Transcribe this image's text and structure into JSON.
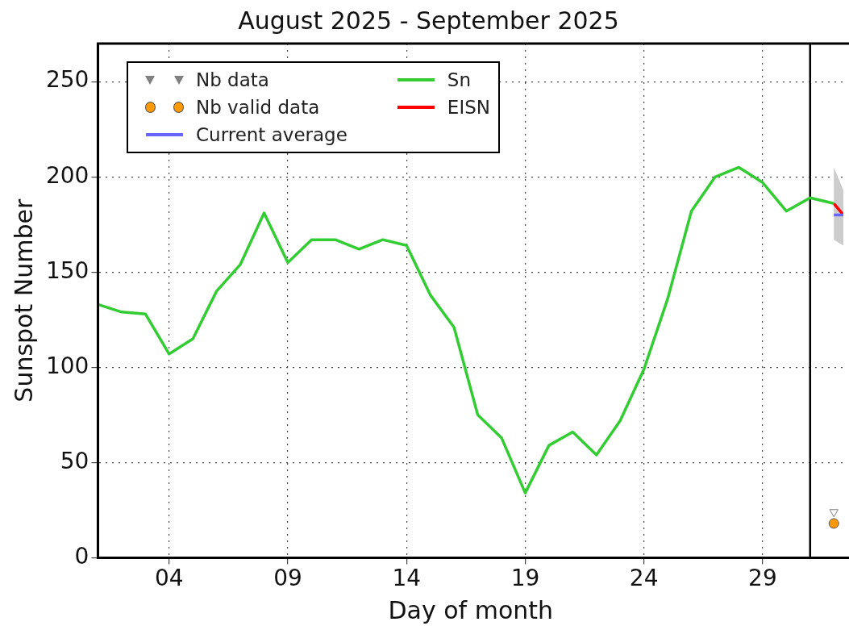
{
  "chart_data": {
    "type": "line",
    "title": "August 2025 - September 2025",
    "xlabel": "Day of month",
    "ylabel": "Sunspot Number",
    "xlim": [
      1,
      32.4
    ],
    "ylim": [
      0,
      270
    ],
    "xticks": [
      {
        "value": 4,
        "label": "04"
      },
      {
        "value": 9,
        "label": "09"
      },
      {
        "value": 14,
        "label": "14"
      },
      {
        "value": 19,
        "label": "19"
      },
      {
        "value": 24,
        "label": "24"
      },
      {
        "value": 29,
        "label": "29"
      }
    ],
    "yticks": [
      0,
      50,
      100,
      150,
      200,
      250
    ],
    "grid": true,
    "legend": "top left",
    "line_style": "solid",
    "ref_lines": [
      {
        "axis": "x",
        "value": 31,
        "color": "#000000"
      }
    ],
    "series": [
      {
        "name": "Nb data",
        "type": "scatter",
        "marker": "triangle",
        "color": "#808080",
        "x": [
          32
        ],
        "values": [
          24
        ]
      },
      {
        "name": "Nb valid data",
        "type": "scatter",
        "marker": "circle",
        "color": "#ff9900",
        "x": [
          32
        ],
        "values": [
          18
        ]
      },
      {
        "name": "Current average",
        "marker": "none",
        "color": "#6666ff",
        "x": [
          32,
          32.4
        ],
        "values": [
          180,
          180
        ]
      },
      {
        "name": "Sn",
        "marker": "none",
        "color": "#33cc33",
        "x": [
          1,
          2,
          3,
          4,
          5,
          6,
          7,
          8,
          9,
          10,
          11,
          12,
          13,
          14,
          15,
          16,
          17,
          18,
          19,
          20,
          21,
          22,
          23,
          24,
          25,
          26,
          27,
          28,
          29,
          30,
          31,
          32
        ],
        "values": [
          133,
          129,
          128,
          107,
          115,
          140,
          154,
          181,
          155,
          167,
          167,
          162,
          167,
          164,
          138,
          121,
          75,
          63,
          34,
          59,
          66,
          54,
          72,
          99,
          136,
          182,
          200,
          205,
          197,
          182,
          189,
          186
        ]
      },
      {
        "name": "EISN",
        "marker": "none",
        "color": "#ff0000",
        "x": [
          32,
          32.4
        ],
        "values": [
          186,
          180
        ],
        "lower": [
          167,
          164
        ],
        "upper": [
          205,
          193
        ]
      }
    ]
  }
}
